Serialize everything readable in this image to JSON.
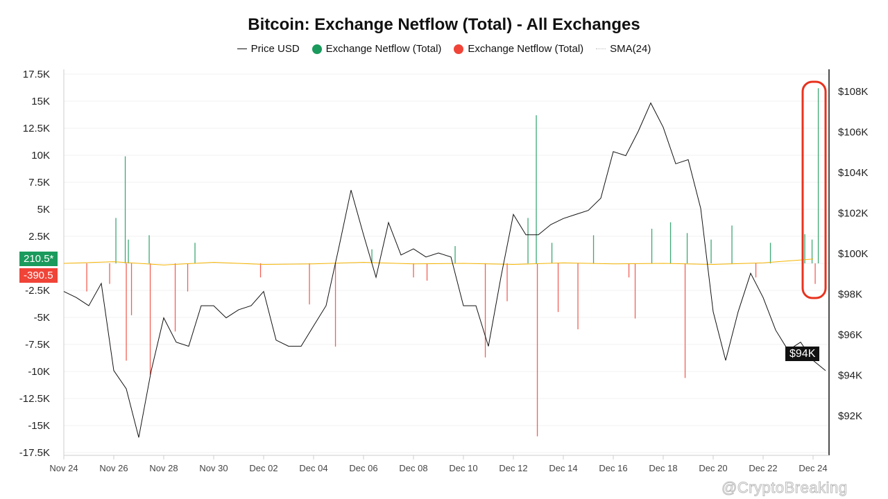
{
  "chart_data": {
    "type": "bar+line",
    "title": "Bitcoin: Exchange Netflow (Total) - All Exchanges",
    "legend": [
      {
        "label": "Price USD",
        "color": "#111111",
        "kind": "line"
      },
      {
        "label": "Exchange Netflow (Total)",
        "color": "#1a9a5c",
        "kind": "dot"
      },
      {
        "label": "Exchange Netflow (Total)",
        "color": "#f04438",
        "kind": "dot"
      },
      {
        "label": "SMA(24)",
        "color": "#bbbbbb",
        "kind": "dotted-line"
      }
    ],
    "legend_position": "top",
    "left_axis": {
      "range": [
        -17500,
        17500
      ],
      "ticks": [
        "17.5K",
        "15K",
        "12.5K",
        "10K",
        "7.5K",
        "5K",
        "2.5K",
        "",
        "-2.5K",
        "-5K",
        "-7.5K",
        "-10K",
        "-12.5K",
        "-15K",
        "-17.5K"
      ]
    },
    "right_axis": {
      "range_usd": [
        92000,
        108000
      ],
      "ticks": [
        "$108K",
        "$106K",
        "$104K",
        "$102K",
        "$100K",
        "$98K",
        "$96K",
        "$94K",
        "$92K"
      ]
    },
    "x_axis": {
      "start": "2024-11-24",
      "end": "2024-12-24",
      "ticks": [
        "Nov 24",
        "Nov 26",
        "Nov 28",
        "Nov 30",
        "Dec 02",
        "Dec 04",
        "Dec 06",
        "Dec 08",
        "Dec 10",
        "Dec 12",
        "Dec 14",
        "Dec 16",
        "Dec 18",
        "Dec 20",
        "Dec 22",
        "Dec 24"
      ]
    },
    "grid": "horizontal",
    "price_usd": {
      "start": "2024-11-24T00:00",
      "interval_hours": 12,
      "values": [
        98100,
        97800,
        97400,
        98500,
        94200,
        93300,
        90900,
        94200,
        96800,
        95600,
        95400,
        97400,
        97400,
        96800,
        97200,
        97400,
        98100,
        95700,
        95400,
        95400,
        96400,
        97400,
        100200,
        103100,
        100900,
        98800,
        101500,
        99900,
        100200,
        99800,
        100000,
        99800,
        97400,
        97400,
        95400,
        98800,
        101900,
        100900,
        100900,
        101400,
        101700,
        101900,
        102100,
        102700,
        105000,
        104800,
        106000,
        107400,
        106200,
        104400,
        104600,
        102200,
        97100,
        94700,
        97100,
        99000,
        97800,
        96200,
        95200,
        95600,
        94700,
        94200
      ]
    },
    "netflow": [
      {
        "t": "2024-11-24T22:00",
        "v": -2600
      },
      {
        "t": "2024-11-25T20:00",
        "v": -1900
      },
      {
        "t": "2024-11-26T02:00",
        "v": 4200
      },
      {
        "t": "2024-11-26T11:00",
        "v": 9900
      },
      {
        "t": "2024-11-26T12:00",
        "v": -9000
      },
      {
        "t": "2024-11-26T14:00",
        "v": 2200
      },
      {
        "t": "2024-11-26T17:00",
        "v": -4800
      },
      {
        "t": "2024-11-27T10:00",
        "v": 2600
      },
      {
        "t": "2024-11-27T11:00",
        "v": -10300
      },
      {
        "t": "2024-11-28T11:00",
        "v": -6300
      },
      {
        "t": "2024-11-28T23:00",
        "v": -2600
      },
      {
        "t": "2024-11-29T06:00",
        "v": 1900
      },
      {
        "t": "2024-12-01T21:00",
        "v": -1300
      },
      {
        "t": "2024-12-03T20:00",
        "v": -3800
      },
      {
        "t": "2024-12-04T21:00",
        "v": -7700
      },
      {
        "t": "2024-12-06T08:00",
        "v": 1300
      },
      {
        "t": "2024-12-08T00:00",
        "v": -1300
      },
      {
        "t": "2024-12-08T13:00",
        "v": -1600
      },
      {
        "t": "2024-12-09T16:00",
        "v": 1600
      },
      {
        "t": "2024-12-10T21:00",
        "v": -8700
      },
      {
        "t": "2024-12-11T18:00",
        "v": -3500
      },
      {
        "t": "2024-12-12T14:00",
        "v": 4200
      },
      {
        "t": "2024-12-12T22:00",
        "v": 13700
      },
      {
        "t": "2024-12-12T23:00",
        "v": -16000
      },
      {
        "t": "2024-12-13T13:00",
        "v": 1900
      },
      {
        "t": "2024-12-13T19:00",
        "v": -4500
      },
      {
        "t": "2024-12-14T14:00",
        "v": -6100
      },
      {
        "t": "2024-12-15T05:00",
        "v": 2600
      },
      {
        "t": "2024-12-16T15:00",
        "v": -1300
      },
      {
        "t": "2024-12-16T21:00",
        "v": -5100
      },
      {
        "t": "2024-12-17T13:00",
        "v": 3200
      },
      {
        "t": "2024-12-18T07:00",
        "v": 3800
      },
      {
        "t": "2024-12-18T21:00",
        "v": -10600
      },
      {
        "t": "2024-12-18T23:00",
        "v": 2800
      },
      {
        "t": "2024-12-19T22:00",
        "v": 2200
      },
      {
        "t": "2024-12-20T18:00",
        "v": 3500
      },
      {
        "t": "2024-12-21T17:00",
        "v": -1300
      },
      {
        "t": "2024-12-22T07:00",
        "v": 1900
      },
      {
        "t": "2024-12-23T16:00",
        "v": 2700
      },
      {
        "t": "2024-12-23T23:00",
        "v": 2200
      },
      {
        "t": "2024-12-24T02:00",
        "v": -1900
      },
      {
        "t": "2024-12-24T05:00",
        "v": 16200
      }
    ],
    "sma24": {
      "start": "2024-11-24T00:00",
      "interval_hours": 48,
      "values": [
        0,
        150,
        -150,
        100,
        -100,
        -50,
        100,
        -50,
        0,
        -100,
        50,
        -50,
        0,
        -100,
        50,
        400
      ]
    },
    "highlight": {
      "from": "2024-12-23T14:00",
      "to": "2024-12-24T12:00",
      "color": "#e8321e"
    },
    "badges": {
      "netflow_positive": "210.5*",
      "netflow_negative": "-390.5",
      "price": "$94K"
    },
    "watermark": "@CryptoBreaking"
  }
}
